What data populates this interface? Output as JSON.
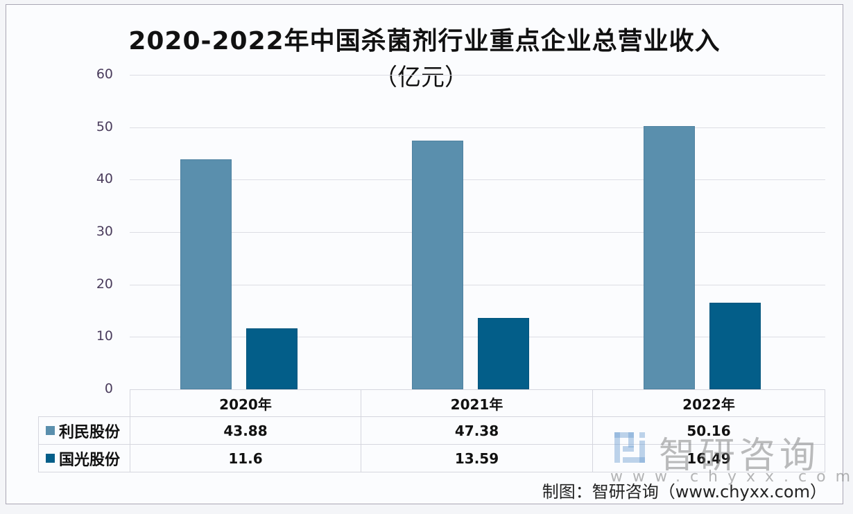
{
  "title": {
    "line1": "2020-2022年中国杀菌剂行业重点企业总营业收入",
    "line2": "（亿元）"
  },
  "colors": {
    "limin": "#5a8fad",
    "guoguang": "#035e89",
    "grid": "#dcdde4",
    "axis_label": "#4a3c5c"
  },
  "y_axis": {
    "ticks": [
      "0",
      "10",
      "20",
      "30",
      "40",
      "50",
      "60"
    ]
  },
  "table": {
    "headers": [
      "2020年",
      "2021年",
      "2022年"
    ],
    "rows": [
      {
        "legend": "利民股份",
        "values": [
          "43.88",
          "47.38",
          "50.16"
        ]
      },
      {
        "legend": "国光股份",
        "values": [
          "11.6",
          "13.59",
          "16.49"
        ]
      }
    ]
  },
  "footer": {
    "source": "制图：智研咨询（www.chyxx.com）"
  },
  "watermark": {
    "text": "智研咨询",
    "url": "www.chyxx.com"
  },
  "chart_data": {
    "type": "bar",
    "title": "2020-2022年中国杀菌剂行业重点企业总营业收入（亿元）",
    "categories": [
      "2020年",
      "2021年",
      "2022年"
    ],
    "series": [
      {
        "name": "利民股份",
        "values": [
          43.88,
          47.38,
          50.16
        ],
        "color": "#5a8fad"
      },
      {
        "name": "国光股份",
        "values": [
          11.6,
          13.59,
          16.49
        ],
        "color": "#035e89"
      }
    ],
    "xlabel": "",
    "ylabel": "亿元",
    "ylim": [
      0,
      60
    ],
    "yticks": [
      0,
      10,
      20,
      30,
      40,
      50,
      60
    ],
    "grid": true,
    "legend_position": "data-table-below"
  }
}
